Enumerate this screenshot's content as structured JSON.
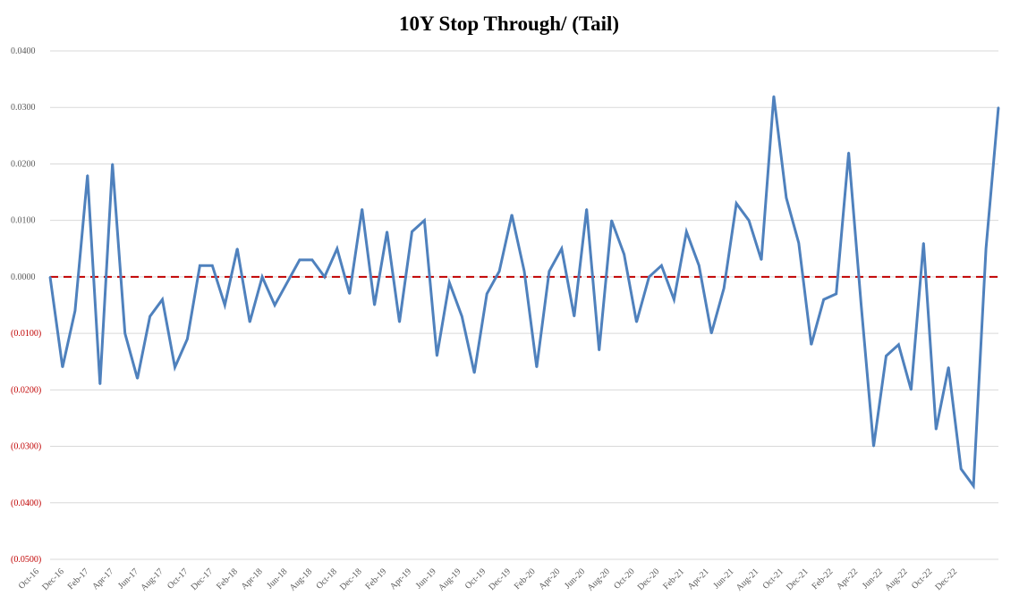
{
  "chart_data": {
    "type": "line",
    "title": "10Y Stop Through/ (Tail)",
    "xlabel": "",
    "ylabel": "",
    "ylim": [
      -0.05,
      0.04
    ],
    "grid": true,
    "legend": "none",
    "colors": {
      "line": "#4f81bd",
      "zero_line": "#c00000",
      "negative_tick": "#c00000",
      "positive_tick": "#595959",
      "grid": "#d9d9d9"
    },
    "y_ticks": [
      {
        "value": 0.04,
        "label": "0.0400"
      },
      {
        "value": 0.03,
        "label": "0.0300"
      },
      {
        "value": 0.02,
        "label": "0.0200"
      },
      {
        "value": 0.01,
        "label": "0.0100"
      },
      {
        "value": 0.0,
        "label": "0.0000"
      },
      {
        "value": -0.01,
        "label": "(0.0100)"
      },
      {
        "value": -0.02,
        "label": "(0.0200)"
      },
      {
        "value": -0.03,
        "label": "(0.0300)"
      },
      {
        "value": -0.04,
        "label": "(0.0400)"
      },
      {
        "value": -0.05,
        "label": "(0.0500)"
      }
    ],
    "x_tick_labels": [
      "Oct-16",
      "Dec-16",
      "Feb-17",
      "Apr-17",
      "Jun-17",
      "Aug-17",
      "Oct-17",
      "Dec-17",
      "Feb-18",
      "Apr-18",
      "Jun-18",
      "Aug-18",
      "Oct-18",
      "Dec-18",
      "Feb-19",
      "Apr-19",
      "Jun-19",
      "Aug-19",
      "Oct-19",
      "Dec-19",
      "Feb-20",
      "Apr-20",
      "Jun-20",
      "Aug-20",
      "Oct-20",
      "Dec-20",
      "Feb-21",
      "Apr-21",
      "Jun-21",
      "Aug-21",
      "Oct-21",
      "Dec-21",
      "Feb-22",
      "Apr-22",
      "Jun-22",
      "Aug-22",
      "Oct-22",
      "Dec-22"
    ],
    "series": [
      {
        "values": [
          0.0,
          -0.016,
          -0.006,
          0.018,
          -0.019,
          0.02,
          -0.01,
          -0.018,
          -0.007,
          -0.004,
          -0.016,
          -0.011,
          0.002,
          0.002,
          -0.005,
          0.005,
          -0.008,
          0.0,
          -0.005,
          -0.001,
          0.003,
          0.003,
          0.0,
          0.005,
          -0.003,
          0.012,
          -0.005,
          0.008,
          -0.008,
          0.008,
          0.01,
          -0.014,
          -0.001,
          -0.007,
          -0.017,
          -0.003,
          0.001,
          0.011,
          0.001,
          -0.016,
          0.001,
          0.005,
          -0.007,
          0.012,
          -0.013,
          0.01,
          0.004,
          -0.008,
          0.0,
          0.002,
          -0.004,
          0.008,
          0.002,
          -0.01,
          -0.002,
          0.013,
          0.01,
          0.003,
          0.032,
          0.014,
          0.006,
          -0.012,
          -0.004,
          -0.003,
          0.022,
          -0.005,
          -0.03,
          -0.014,
          -0.012,
          -0.02,
          0.006,
          -0.027,
          -0.016,
          -0.034,
          -0.037,
          0.005,
          0.03
        ]
      }
    ]
  }
}
